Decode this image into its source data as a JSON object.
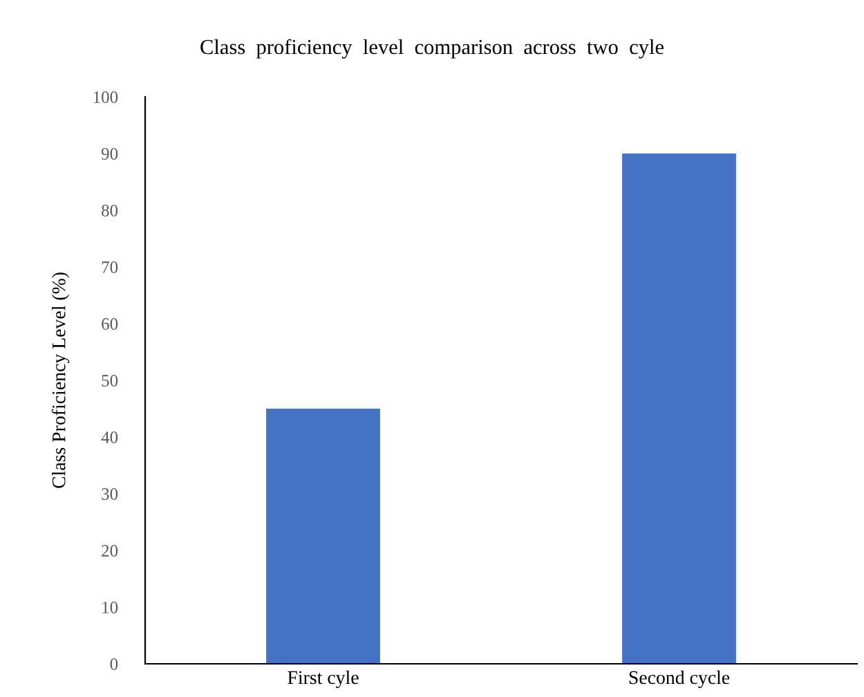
{
  "chart_data": {
    "type": "bar",
    "title": "Class  proficiency  level  comparison  across  two  cyle",
    "ylabel": "Class Proficiency Level (%)",
    "categories": [
      "First cyle",
      "Second cycle"
    ],
    "values": [
      45,
      90
    ],
    "color": "#4472c4",
    "ylim": [
      0,
      100
    ],
    "yticks": [
      0,
      10,
      20,
      30,
      40,
      50,
      60,
      70,
      80,
      90,
      100
    ],
    "grid": false,
    "legend": false
  }
}
